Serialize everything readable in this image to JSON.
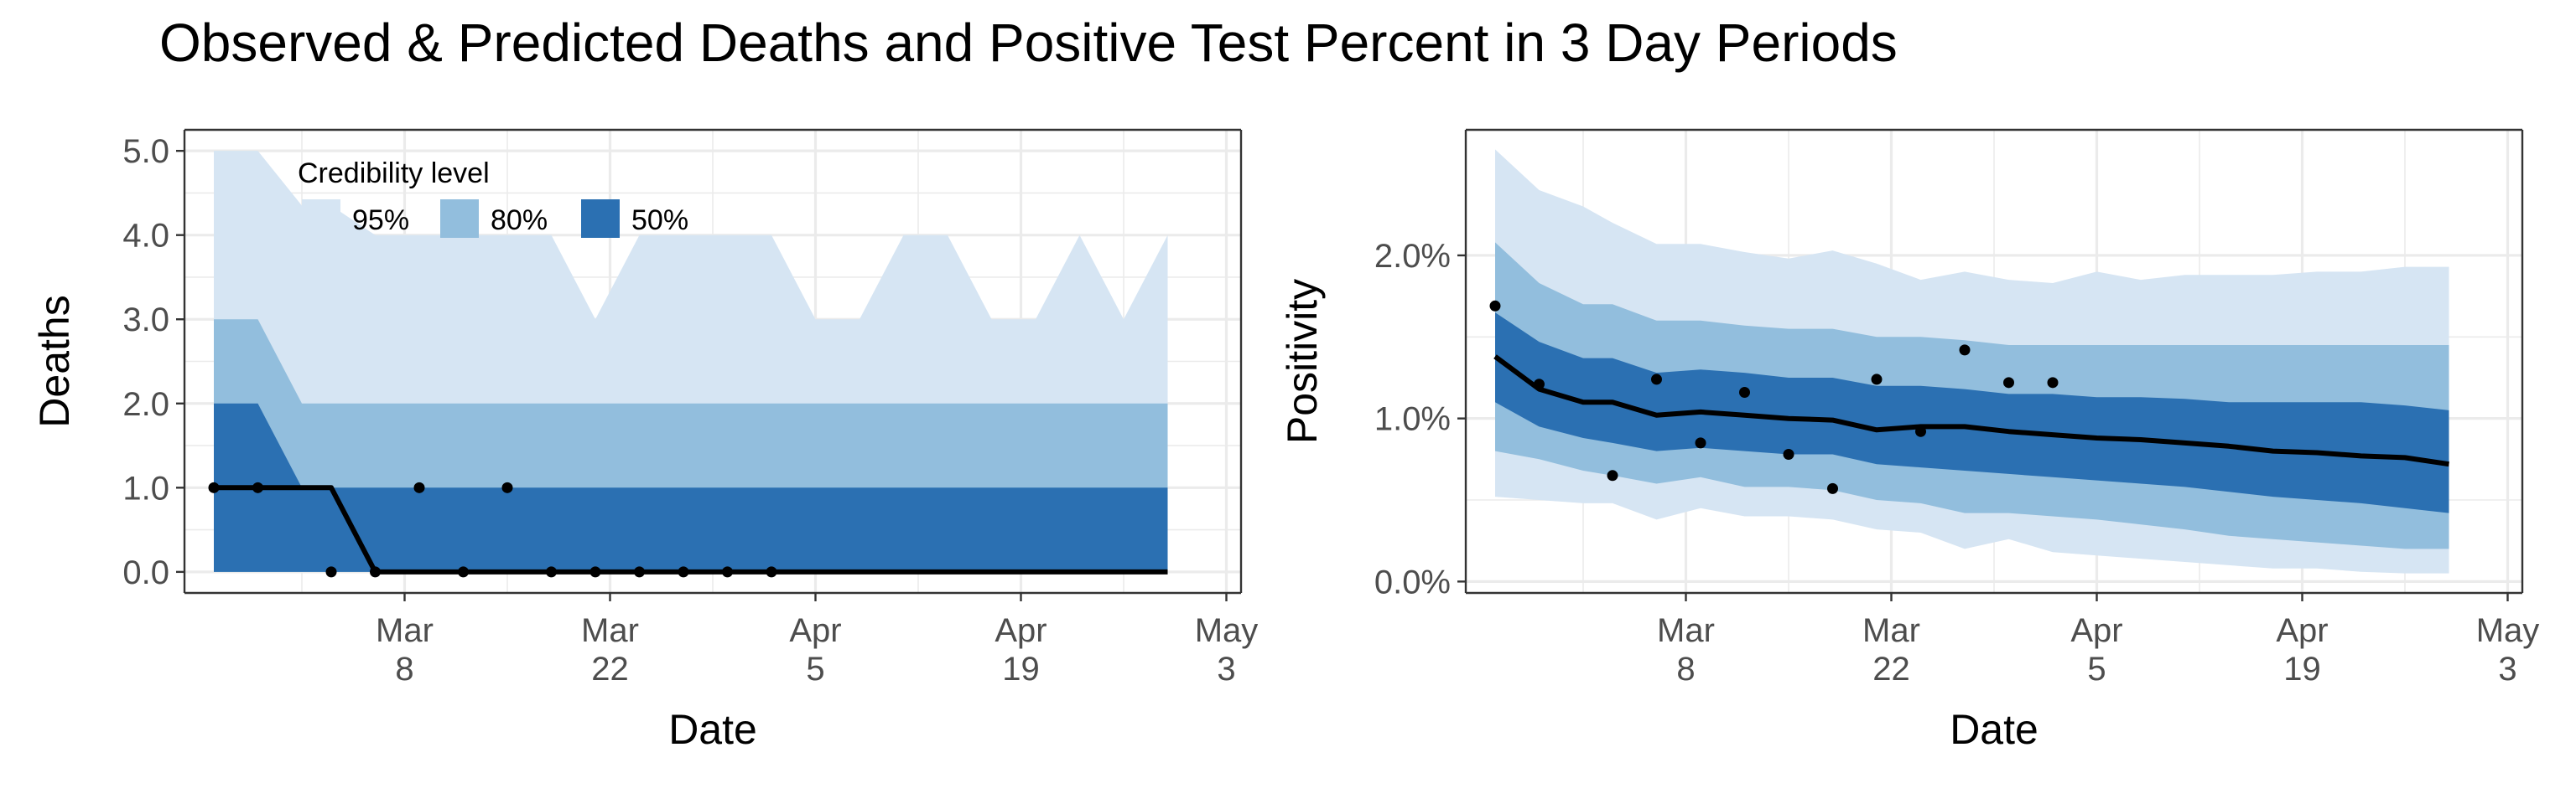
{
  "title": "Observed & Predicted Deaths and Positive Test Percent in 3 Day Periods",
  "colors": {
    "band_95": "#d6e5f3",
    "band_80": "#92bedd",
    "band_50": "#2b70b2",
    "median_line": "#000000",
    "points": "#000000",
    "grid": "#ebebeb",
    "panel_border": "#333333"
  },
  "legend": {
    "title": "Credibility level",
    "items": [
      {
        "label": "95%",
        "color": "#d6e5f3"
      },
      {
        "label": "80%",
        "color": "#92bedd"
      },
      {
        "label": "50%",
        "color": "#2b70b2"
      }
    ],
    "placement": "top-left inside deaths panel"
  },
  "chart_data": [
    {
      "type": "area",
      "xlabel": "Date",
      "ylabel": "Deaths",
      "x_axis": {
        "type": "date",
        "range": [
          "2020-02-22",
          "2020-05-04"
        ],
        "ticks": [
          {
            "date": "2020-03-08",
            "line1": "Mar",
            "line2": "8"
          },
          {
            "date": "2020-03-22",
            "line1": "Mar",
            "line2": "22"
          },
          {
            "date": "2020-04-05",
            "line1": "Apr",
            "line2": "5"
          },
          {
            "date": "2020-04-19",
            "line1": "Apr",
            "line2": "19"
          },
          {
            "date": "2020-05-03",
            "line1": "May",
            "line2": "3"
          }
        ]
      },
      "y_axis": {
        "range": [
          -0.25,
          5.25
        ],
        "ticks": [
          0,
          1,
          2,
          3,
          4,
          5
        ],
        "tick_labels": [
          "0.0",
          "1.0",
          "2.0",
          "3.0",
          "4.0",
          "5.0"
        ]
      },
      "grid": true,
      "bands": {
        "dates": [
          "2020-02-24",
          "2020-02-27",
          "2020-03-01",
          "2020-03-03",
          "2020-03-06",
          "2020-03-09",
          "2020-03-12",
          "2020-03-15",
          "2020-03-18",
          "2020-03-21",
          "2020-03-24",
          "2020-03-27",
          "2020-03-30",
          "2020-04-02",
          "2020-04-05",
          "2020-04-08",
          "2020-04-11",
          "2020-04-14",
          "2020-04-17",
          "2020-04-20",
          "2020-04-23",
          "2020-04-26",
          "2020-04-29"
        ],
        "lo95": [
          0,
          0,
          0,
          0,
          0,
          0,
          0,
          0,
          0,
          0,
          0,
          0,
          0,
          0,
          0,
          0,
          0,
          0,
          0,
          0,
          0,
          0,
          0
        ],
        "hi95": [
          5,
          5,
          4.35,
          4.35,
          4,
          4,
          4,
          4,
          4,
          3,
          4,
          4,
          4,
          4,
          3,
          3,
          4,
          4,
          3,
          3,
          4,
          3,
          4
        ],
        "lo80": [
          0,
          0,
          0,
          0,
          0,
          0,
          0,
          0,
          0,
          0,
          0,
          0,
          0,
          0,
          0,
          0,
          0,
          0,
          0,
          0,
          0,
          0,
          0
        ],
        "hi80": [
          3,
          3,
          2,
          2,
          2,
          2,
          2,
          2,
          2,
          2,
          2,
          2,
          2,
          2,
          2,
          2,
          2,
          2,
          2,
          2,
          2,
          2,
          2
        ],
        "lo50": [
          0,
          0,
          0,
          0,
          0,
          0,
          0,
          0,
          0,
          0,
          0,
          0,
          0,
          0,
          0,
          0,
          0,
          0,
          0,
          0,
          0,
          0,
          0
        ],
        "hi50": [
          2,
          2,
          1,
          1,
          1,
          1,
          1,
          1,
          1,
          1,
          1,
          1,
          1,
          1,
          1,
          1,
          1,
          1,
          1,
          1,
          1,
          1,
          1
        ]
      },
      "median": {
        "dates": [
          "2020-02-24",
          "2020-02-27",
          "2020-03-03",
          "2020-03-06",
          "2020-04-29"
        ],
        "values": [
          1,
          1,
          1,
          0,
          0
        ]
      },
      "observed": {
        "dates": [
          "2020-02-24",
          "2020-02-27",
          "2020-03-03",
          "2020-03-06",
          "2020-03-09",
          "2020-03-12",
          "2020-03-15",
          "2020-03-18",
          "2020-03-21",
          "2020-03-24",
          "2020-03-27",
          "2020-03-30",
          "2020-04-02"
        ],
        "values": [
          1,
          1,
          0,
          0,
          1,
          0,
          1,
          0,
          0,
          0,
          0,
          0,
          0
        ]
      }
    },
    {
      "type": "area",
      "xlabel": "Date",
      "ylabel": "Positivity",
      "x_axis": {
        "type": "date",
        "range": [
          "2020-02-22",
          "2020-05-04"
        ],
        "ticks": [
          {
            "date": "2020-03-08",
            "line1": "Mar",
            "line2": "8"
          },
          {
            "date": "2020-03-22",
            "line1": "Mar",
            "line2": "22"
          },
          {
            "date": "2020-04-05",
            "line1": "Apr",
            "line2": "5"
          },
          {
            "date": "2020-04-19",
            "line1": "Apr",
            "line2": "19"
          },
          {
            "date": "2020-05-03",
            "line1": "May",
            "line2": "3"
          }
        ]
      },
      "y_axis": {
        "range": [
          -0.07,
          2.77
        ],
        "unit": "%",
        "ticks": [
          0,
          1,
          2
        ],
        "tick_labels": [
          "0.0%",
          "1.0%",
          "2.0%"
        ]
      },
      "grid": true,
      "bands": {
        "dates": [
          "2020-02-24",
          "2020-02-27",
          "2020-03-01",
          "2020-03-03",
          "2020-03-06",
          "2020-03-09",
          "2020-03-12",
          "2020-03-15",
          "2020-03-18",
          "2020-03-21",
          "2020-03-24",
          "2020-03-27",
          "2020-03-30",
          "2020-04-02",
          "2020-04-05",
          "2020-04-08",
          "2020-04-11",
          "2020-04-14",
          "2020-04-17",
          "2020-04-20",
          "2020-04-23",
          "2020-04-26",
          "2020-04-29"
        ],
        "lo95": [
          0.52,
          0.5,
          0.48,
          0.48,
          0.38,
          0.45,
          0.4,
          0.4,
          0.38,
          0.32,
          0.3,
          0.2,
          0.26,
          0.18,
          0.16,
          0.14,
          0.12,
          0.1,
          0.08,
          0.08,
          0.06,
          0.05,
          0.05
        ],
        "hi95": [
          2.65,
          2.4,
          2.3,
          2.2,
          2.07,
          2.07,
          2.02,
          1.98,
          2.03,
          1.95,
          1.85,
          1.9,
          1.85,
          1.83,
          1.9,
          1.85,
          1.88,
          1.88,
          1.88,
          1.9,
          1.9,
          1.93,
          1.93
        ],
        "lo80": [
          0.8,
          0.75,
          0.68,
          0.65,
          0.6,
          0.64,
          0.58,
          0.58,
          0.56,
          0.5,
          0.48,
          0.42,
          0.42,
          0.4,
          0.38,
          0.35,
          0.32,
          0.28,
          0.26,
          0.24,
          0.22,
          0.2,
          0.2
        ],
        "hi80": [
          2.08,
          1.83,
          1.7,
          1.7,
          1.6,
          1.6,
          1.57,
          1.55,
          1.55,
          1.5,
          1.5,
          1.48,
          1.45,
          1.45,
          1.45,
          1.45,
          1.45,
          1.45,
          1.45,
          1.45,
          1.45,
          1.45,
          1.45
        ],
        "lo50": [
          1.1,
          0.95,
          0.88,
          0.85,
          0.8,
          0.82,
          0.8,
          0.78,
          0.78,
          0.72,
          0.7,
          0.68,
          0.66,
          0.64,
          0.62,
          0.6,
          0.58,
          0.55,
          0.52,
          0.5,
          0.48,
          0.45,
          0.42
        ],
        "hi50": [
          1.65,
          1.47,
          1.37,
          1.37,
          1.28,
          1.3,
          1.28,
          1.25,
          1.25,
          1.2,
          1.2,
          1.18,
          1.15,
          1.15,
          1.13,
          1.13,
          1.12,
          1.1,
          1.1,
          1.1,
          1.1,
          1.08,
          1.05
        ]
      },
      "median": {
        "dates": [
          "2020-02-24",
          "2020-02-27",
          "2020-03-01",
          "2020-03-03",
          "2020-03-06",
          "2020-03-09",
          "2020-03-12",
          "2020-03-15",
          "2020-03-18",
          "2020-03-21",
          "2020-03-24",
          "2020-03-27",
          "2020-03-30",
          "2020-04-02",
          "2020-04-05",
          "2020-04-08",
          "2020-04-11",
          "2020-04-14",
          "2020-04-17",
          "2020-04-20",
          "2020-04-23",
          "2020-04-26",
          "2020-04-29"
        ],
        "values": [
          1.38,
          1.18,
          1.1,
          1.1,
          1.02,
          1.04,
          1.02,
          1.0,
          0.99,
          0.93,
          0.95,
          0.95,
          0.92,
          0.9,
          0.88,
          0.87,
          0.85,
          0.83,
          0.8,
          0.79,
          0.77,
          0.76,
          0.72
        ]
      },
      "observed": {
        "dates": [
          "2020-02-24",
          "2020-02-27",
          "2020-03-03",
          "2020-03-06",
          "2020-03-09",
          "2020-03-12",
          "2020-03-15",
          "2020-03-18",
          "2020-03-21",
          "2020-03-24",
          "2020-03-27",
          "2020-03-30",
          "2020-04-02"
        ],
        "values": [
          1.69,
          1.21,
          0.65,
          1.24,
          0.85,
          1.16,
          0.78,
          0.57,
          1.24,
          0.92,
          1.42,
          1.22,
          1.22
        ]
      }
    }
  ]
}
